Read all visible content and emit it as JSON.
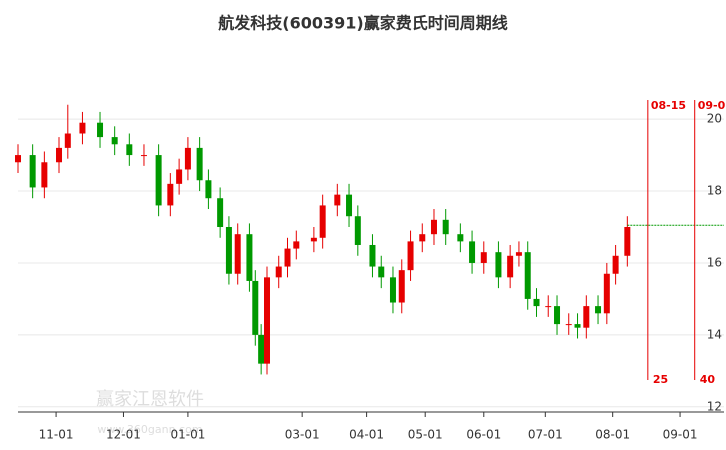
{
  "chart_data": {
    "type": "candlestick",
    "title": "航发科技(600391)赢家费氏时间周期线",
    "watermark": "赢家江恩软件",
    "watermark_url": "www.360gann.com",
    "up_color": "#e60000",
    "down_color": "#009900",
    "xlim": [
      -13,
      228
    ],
    "ylim": [
      11.8,
      22.2
    ],
    "yticks": [
      12,
      14,
      16,
      18,
      20
    ],
    "xticks": [
      {
        "value": 0,
        "label": "11-01"
      },
      {
        "value": 23,
        "label": "12-01"
      },
      {
        "value": 45,
        "label": "01-01"
      },
      {
        "value": 84,
        "label": "03-01"
      },
      {
        "value": 106,
        "label": "04-01"
      },
      {
        "value": 126,
        "label": "05-01"
      },
      {
        "value": 146,
        "label": "06-01"
      },
      {
        "value": 167,
        "label": "07-01"
      },
      {
        "value": 190,
        "label": "08-01"
      },
      {
        "value": 213,
        "label": "09-01"
      }
    ],
    "grid": true,
    "x": [
      -13,
      -8,
      -4,
      1,
      4,
      9,
      15,
      20,
      25,
      30,
      35,
      39,
      42,
      45,
      49,
      52,
      56,
      59,
      62,
      66,
      68,
      70,
      72,
      76,
      79,
      82,
      88,
      91,
      96,
      100,
      103,
      108,
      111,
      115,
      118,
      121,
      125,
      129,
      133,
      138,
      142,
      146,
      151,
      155,
      158,
      161,
      164,
      168,
      171,
      175,
      178,
      181,
      185,
      188,
      191,
      195
    ],
    "open": [
      18.8,
      19.0,
      18.1,
      18.8,
      19.2,
      19.6,
      19.9,
      19.5,
      19.3,
      19.0,
      19.0,
      17.6,
      18.2,
      18.6,
      19.2,
      18.3,
      17.8,
      17.0,
      15.7,
      16.8,
      15.5,
      14.0,
      13.2,
      15.6,
      15.9,
      16.4,
      16.6,
      16.7,
      17.6,
      17.9,
      17.3,
      16.5,
      15.9,
      15.6,
      14.9,
      15.8,
      16.6,
      16.8,
      17.2,
      16.8,
      16.6,
      16.0,
      16.3,
      15.6,
      16.2,
      16.3,
      15.0,
      14.8,
      14.8,
      14.3,
      14.3,
      14.2,
      14.8,
      14.6,
      15.7,
      16.2
    ],
    "high": [
      19.3,
      19.3,
      19.1,
      19.5,
      20.4,
      20.2,
      20.2,
      19.8,
      19.6,
      19.3,
      19.3,
      18.5,
      18.9,
      19.5,
      19.5,
      18.6,
      18.1,
      17.3,
      17.1,
      17.1,
      15.8,
      14.3,
      15.9,
      16.2,
      16.7,
      16.9,
      17.0,
      17.9,
      18.2,
      18.2,
      17.6,
      16.8,
      16.2,
      15.9,
      16.1,
      16.9,
      17.1,
      17.5,
      17.5,
      17.1,
      16.9,
      16.6,
      16.6,
      16.5,
      16.6,
      16.6,
      15.3,
      15.1,
      15.1,
      14.6,
      14.6,
      15.1,
      15.1,
      16.0,
      16.5,
      17.3
    ],
    "low": [
      18.5,
      17.8,
      17.8,
      18.5,
      18.9,
      19.3,
      19.2,
      19.0,
      18.7,
      18.7,
      17.3,
      17.3,
      17.9,
      18.3,
      18.0,
      17.5,
      16.7,
      15.4,
      15.4,
      15.2,
      13.7,
      12.9,
      12.9,
      15.3,
      15.6,
      16.1,
      16.3,
      16.4,
      17.3,
      17.0,
      16.2,
      15.6,
      15.3,
      14.6,
      14.6,
      15.5,
      16.3,
      16.5,
      16.5,
      16.3,
      15.7,
      15.7,
      15.3,
      15.3,
      15.9,
      14.7,
      14.5,
      14.5,
      14.0,
      14.0,
      13.9,
      13.9,
      14.3,
      14.3,
      15.4,
      15.9
    ],
    "close": [
      19.0,
      18.1,
      18.8,
      19.2,
      19.6,
      19.9,
      19.5,
      19.3,
      19.0,
      19.0,
      17.6,
      18.2,
      18.6,
      19.2,
      18.3,
      17.8,
      17.0,
      15.7,
      16.8,
      15.5,
      14.0,
      13.2,
      15.6,
      15.9,
      16.4,
      16.6,
      16.7,
      17.6,
      17.9,
      17.3,
      16.5,
      15.9,
      15.6,
      14.9,
      15.8,
      16.6,
      16.8,
      17.2,
      16.8,
      16.6,
      16.0,
      16.3,
      15.6,
      16.2,
      16.3,
      15.0,
      14.8,
      14.8,
      14.3,
      14.3,
      14.2,
      14.8,
      14.6,
      15.7,
      16.2,
      17.0
    ],
    "level_line": {
      "value": 17.05,
      "color": "#009900"
    },
    "cycle_lines": [
      {
        "x": 202,
        "label": "08-15",
        "count": 25
      },
      {
        "x": 218,
        "label": "09-0",
        "count": 40
      }
    ],
    "cycle_color": "#e60000"
  }
}
